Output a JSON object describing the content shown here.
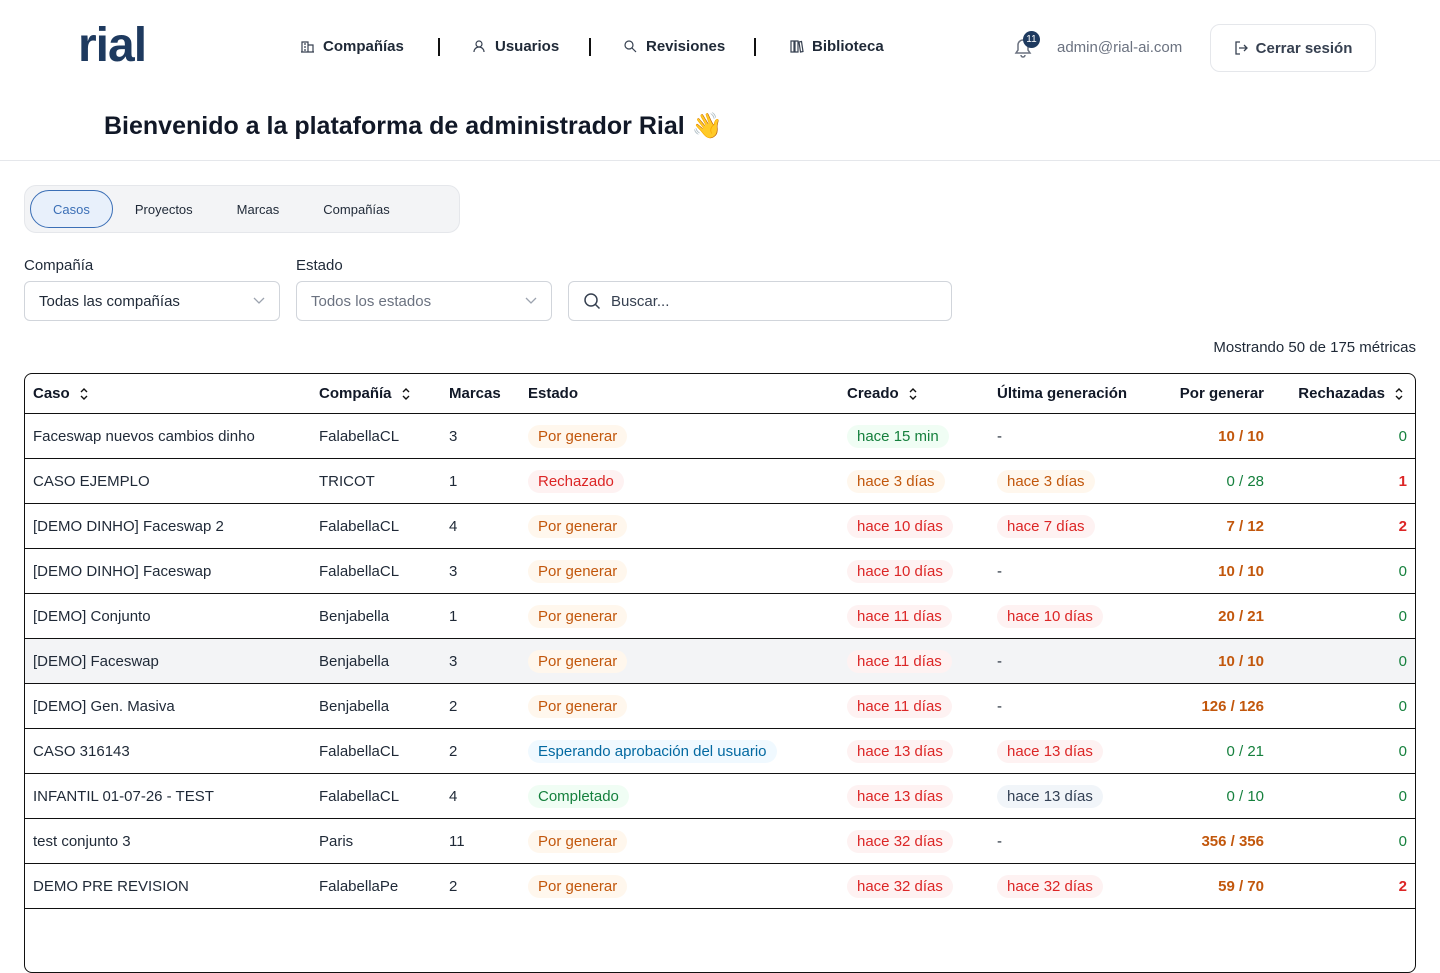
{
  "header": {
    "logo": "rial",
    "nav": [
      "Compañías",
      "Usuarios",
      "Revisiones",
      "Biblioteca"
    ],
    "notifications": "11",
    "email": "admin@rial-ai.com",
    "logout": "Cerrar sesión"
  },
  "welcome": "Bienvenido a la plataforma de administrador Rial 👋",
  "tabs": {
    "items": [
      "Casos",
      "Proyectos",
      "Marcas",
      "Compañías"
    ],
    "active": 0
  },
  "filters": {
    "company_label": "Compañía",
    "company_value": "Todas las compañías",
    "state_label": "Estado",
    "state_placeholder": "Todos los estados",
    "search_placeholder": "Buscar..."
  },
  "count_text": "Mostrando 50 de 175 métricas",
  "table": {
    "highlighted_row": 5,
    "columns": [
      {
        "label": "Caso",
        "sortable": true
      },
      {
        "label": "Compañía",
        "sortable": true
      },
      {
        "label": "Marcas",
        "sortable": false
      },
      {
        "label": "Estado",
        "sortable": false
      },
      {
        "label": "Creado",
        "sortable": true
      },
      {
        "label": "Última generación",
        "sortable": false
      },
      {
        "label": "Por generar",
        "sortable": false
      },
      {
        "label": "Rechazadas",
        "sortable": true
      }
    ],
    "rows": [
      {
        "cells": [
          "Faceswap nuevos cambios dinho",
          "FalabellaCL",
          "3",
          "Por generar",
          "hace 15 min",
          "-",
          "10 / 10",
          "0"
        ],
        "tones": [
          "plain",
          "plain",
          "plain",
          "orange",
          "green",
          "plain",
          "orange",
          "green"
        ]
      },
      {
        "cells": [
          "CASO EJEMPLO",
          "TRICOT",
          "1",
          "Rechazado",
          "hace 3 días",
          "hace 3 días",
          "0 / 28",
          "1"
        ],
        "tones": [
          "plain",
          "plain",
          "plain",
          "red",
          "orange",
          "orange",
          "green",
          "red"
        ]
      },
      {
        "cells": [
          "[DEMO DINHO] Faceswap 2",
          "FalabellaCL",
          "4",
          "Por generar",
          "hace 10 días",
          "hace 7 días",
          "7 / 12",
          "2"
        ],
        "tones": [
          "plain",
          "plain",
          "plain",
          "orange",
          "red",
          "red",
          "orange",
          "red"
        ]
      },
      {
        "cells": [
          "[DEMO DINHO] Faceswap",
          "FalabellaCL",
          "3",
          "Por generar",
          "hace 10 días",
          "-",
          "10 / 10",
          "0"
        ],
        "tones": [
          "plain",
          "plain",
          "plain",
          "orange",
          "red",
          "plain",
          "orange",
          "green"
        ]
      },
      {
        "cells": [
          "[DEMO] Conjunto",
          "Benjabella",
          "1",
          "Por generar",
          "hace 11 días",
          "hace 10 días",
          "20 / 21",
          "0"
        ],
        "tones": [
          "plain",
          "plain",
          "plain",
          "orange",
          "red",
          "red",
          "orange",
          "green"
        ]
      },
      {
        "cells": [
          "[DEMO] Faceswap",
          "Benjabella",
          "3",
          "Por generar",
          "hace 11 días",
          "-",
          "10 / 10",
          "0"
        ],
        "tones": [
          "plain",
          "plain",
          "plain",
          "orange",
          "red",
          "plain",
          "orange",
          "green"
        ]
      },
      {
        "cells": [
          "[DEMO] Gen. Masiva",
          "Benjabella",
          "2",
          "Por generar",
          "hace 11 días",
          "-",
          "126 / 126",
          "0"
        ],
        "tones": [
          "plain",
          "plain",
          "plain",
          "orange",
          "red",
          "plain",
          "orange",
          "green"
        ]
      },
      {
        "cells": [
          "CASO 316143",
          "FalabellaCL",
          "2",
          "Esperando aprobación del usuario",
          "hace 13 días",
          "hace 13 días",
          "0 / 21",
          "0"
        ],
        "tones": [
          "plain",
          "plain",
          "plain",
          "blue",
          "red",
          "red",
          "green",
          "green"
        ]
      },
      {
        "cells": [
          "INFANTIL 01-07-26 - TEST",
          "FalabellaCL",
          "4",
          "Completado",
          "hace 13 días",
          "hace 13 días",
          "0 / 10",
          "0"
        ],
        "tones": [
          "plain",
          "plain",
          "plain",
          "green",
          "red",
          "gray",
          "green",
          "green"
        ]
      },
      {
        "cells": [
          "test conjunto 3",
          "Paris",
          "11",
          "Por generar",
          "hace 32 días",
          "-",
          "356 / 356",
          "0"
        ],
        "tones": [
          "plain",
          "plain",
          "plain",
          "orange",
          "red",
          "plain",
          "orange",
          "green"
        ]
      },
      {
        "cells": [
          "DEMO PRE REVISION",
          "FalabellaPe",
          "2",
          "Por generar",
          "hace 32 días",
          "hace 32 días",
          "59 / 70",
          "2"
        ],
        "tones": [
          "plain",
          "plain",
          "plain",
          "orange",
          "red",
          "red",
          "orange",
          "red"
        ]
      }
    ]
  }
}
